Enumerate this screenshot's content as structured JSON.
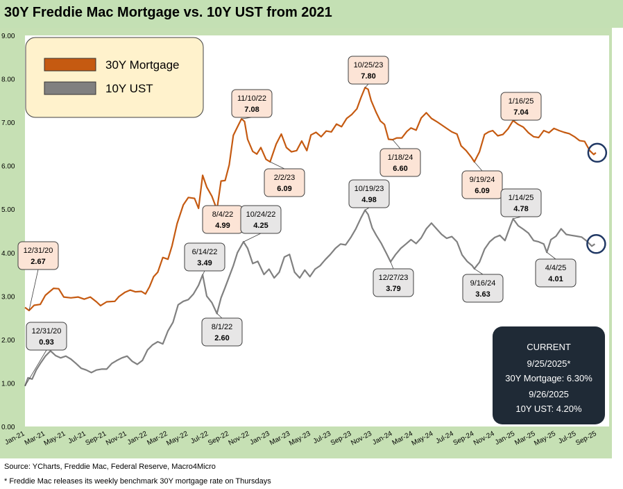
{
  "title": "30Y Freddie Mac Mortgage vs. 10Y UST from 2021",
  "footer": {
    "source": "Source: YCharts, Freddie Mac, Federal Reserve, Macro4Micro",
    "note": "* Freddie Mac releases its weekly benchmark 30Y mortgage rate on Thursdays"
  },
  "current_box": {
    "heading": "CURRENT",
    "date1": "9/25/2025*",
    "line1": "30Y Mortgage: 6.30%",
    "date2": "9/26/2025",
    "line2": "10Y UST: 4.20%"
  },
  "colors": {
    "mortgage": "#c55a11",
    "ust": "#808080",
    "plot_bg": "#ffffff",
    "panel_bg": "#c6e0b4",
    "legend_bg": "#fff2cc",
    "mortgage_label_bg": "#fce4d6",
    "ust_label_bg": "#e7e6e6",
    "current_bg": "#1f2a36",
    "marker_circle": "#203864"
  },
  "chart_data": {
    "type": "line",
    "title": "30Y Freddie Mac Mortgage vs. 10Y UST from 2021",
    "x_tick_labels": [
      "Jan-21",
      "Mar-21",
      "May-21",
      "Jul-21",
      "Sep-21",
      "Nov-21",
      "Jan-22",
      "Mar-22",
      "May-22",
      "Jul-22",
      "Sep-22",
      "Nov-22",
      "Jan-23",
      "Mar-23",
      "May-23",
      "Jul-23",
      "Sep-23",
      "Nov-23",
      "Jan-24",
      "Mar-24",
      "May-24",
      "Jul-24",
      "Sep-24",
      "Nov-24",
      "Jan-25",
      "Mar-25",
      "May-25",
      "Jul-25",
      "Sep-25"
    ],
    "x_tick_months": [
      0,
      2,
      4,
      6,
      8,
      10,
      12,
      14,
      16,
      18,
      20,
      22,
      24,
      26,
      28,
      30,
      32,
      34,
      36,
      38,
      40,
      42,
      44,
      46,
      48,
      50,
      52,
      54,
      56
    ],
    "x_unit": "months since Jan-21",
    "xlim": [
      0,
      57.2
    ],
    "ylim": [
      0,
      9
    ],
    "y_tick_labels": [
      "0.00",
      "1.00",
      "2.00",
      "3.00",
      "4.00",
      "5.00",
      "6.00",
      "7.00",
      "8.00",
      "9.00"
    ],
    "grid": false,
    "legend": {
      "position": "top-left",
      "entries": [
        "30Y Mortgage",
        "10Y UST"
      ]
    },
    "series": [
      {
        "name": "30Y Mortgage",
        "points": [
          [
            0,
            2.74
          ],
          [
            0.4,
            2.67
          ],
          [
            0.9,
            2.79
          ],
          [
            1.5,
            2.81
          ],
          [
            2.0,
            3.02
          ],
          [
            2.8,
            3.18
          ],
          [
            3.3,
            3.17
          ],
          [
            3.8,
            2.98
          ],
          [
            4.5,
            2.96
          ],
          [
            5.2,
            2.98
          ],
          [
            5.8,
            2.93
          ],
          [
            6.4,
            2.98
          ],
          [
            7.0,
            2.87
          ],
          [
            7.4,
            2.78
          ],
          [
            8.0,
            2.87
          ],
          [
            8.8,
            2.88
          ],
          [
            9.2,
            2.99
          ],
          [
            9.8,
            3.09
          ],
          [
            10.3,
            3.14
          ],
          [
            10.8,
            3.1
          ],
          [
            11.4,
            3.11
          ],
          [
            11.8,
            3.05
          ],
          [
            12.2,
            3.22
          ],
          [
            12.6,
            3.45
          ],
          [
            13.0,
            3.55
          ],
          [
            13.5,
            3.89
          ],
          [
            14.0,
            3.85
          ],
          [
            14.4,
            4.16
          ],
          [
            14.9,
            4.67
          ],
          [
            15.5,
            5.1
          ],
          [
            16.0,
            5.27
          ],
          [
            16.6,
            5.25
          ],
          [
            17.0,
            5.02
          ],
          [
            17.4,
            5.78
          ],
          [
            17.8,
            5.51
          ],
          [
            18.3,
            5.3
          ],
          [
            18.8,
            4.99
          ],
          [
            19.2,
            5.65
          ],
          [
            19.6,
            5.66
          ],
          [
            20.0,
            6.02
          ],
          [
            20.4,
            6.7
          ],
          [
            20.9,
            6.94
          ],
          [
            21.2,
            7.08
          ],
          [
            21.5,
            7.02
          ],
          [
            21.8,
            6.61
          ],
          [
            22.3,
            6.33
          ],
          [
            22.7,
            6.27
          ],
          [
            23.1,
            6.42
          ],
          [
            23.6,
            6.15
          ],
          [
            24.0,
            6.09
          ],
          [
            24.6,
            6.5
          ],
          [
            25.1,
            6.73
          ],
          [
            25.6,
            6.42
          ],
          [
            26.1,
            6.32
          ],
          [
            26.6,
            6.35
          ],
          [
            27.1,
            6.57
          ],
          [
            27.6,
            6.35
          ],
          [
            28.0,
            6.71
          ],
          [
            28.5,
            6.77
          ],
          [
            29.0,
            6.67
          ],
          [
            29.5,
            6.8
          ],
          [
            30.0,
            6.78
          ],
          [
            30.5,
            6.96
          ],
          [
            31.0,
            6.9
          ],
          [
            31.5,
            7.09
          ],
          [
            32.0,
            7.18
          ],
          [
            32.5,
            7.31
          ],
          [
            32.9,
            7.57
          ],
          [
            33.3,
            7.8
          ],
          [
            33.6,
            7.76
          ],
          [
            33.9,
            7.5
          ],
          [
            34.4,
            7.22
          ],
          [
            34.8,
            7.03
          ],
          [
            35.2,
            6.95
          ],
          [
            35.6,
            6.61
          ],
          [
            36.0,
            6.6
          ],
          [
            36.4,
            6.64
          ],
          [
            36.9,
            6.64
          ],
          [
            37.4,
            6.79
          ],
          [
            37.8,
            6.87
          ],
          [
            38.3,
            6.82
          ],
          [
            38.8,
            7.1
          ],
          [
            39.3,
            7.22
          ],
          [
            39.8,
            7.09
          ],
          [
            40.3,
            7.02
          ],
          [
            40.8,
            6.94
          ],
          [
            41.3,
            6.86
          ],
          [
            41.8,
            6.78
          ],
          [
            42.3,
            6.73
          ],
          [
            42.7,
            6.46
          ],
          [
            43.2,
            6.35
          ],
          [
            43.7,
            6.2
          ],
          [
            44.0,
            6.09
          ],
          [
            44.5,
            6.32
          ],
          [
            45.0,
            6.72
          ],
          [
            45.4,
            6.78
          ],
          [
            45.8,
            6.81
          ],
          [
            46.3,
            6.69
          ],
          [
            46.8,
            6.72
          ],
          [
            47.3,
            6.85
          ],
          [
            47.8,
            7.04
          ],
          [
            48.3,
            6.95
          ],
          [
            48.8,
            6.89
          ],
          [
            49.3,
            6.76
          ],
          [
            49.8,
            6.67
          ],
          [
            50.3,
            6.65
          ],
          [
            50.8,
            6.81
          ],
          [
            51.3,
            6.76
          ],
          [
            51.8,
            6.86
          ],
          [
            52.3,
            6.81
          ],
          [
            52.8,
            6.77
          ],
          [
            53.3,
            6.74
          ],
          [
            53.8,
            6.67
          ],
          [
            54.3,
            6.58
          ],
          [
            54.8,
            6.56
          ],
          [
            55.3,
            6.35
          ],
          [
            55.7,
            6.26
          ],
          [
            55.9,
            6.3
          ]
        ]
      },
      {
        "name": "10Y UST",
        "points": [
          [
            0,
            0.93
          ],
          [
            0.3,
            1.12
          ],
          [
            0.7,
            1.09
          ],
          [
            1.1,
            1.3
          ],
          [
            1.5,
            1.45
          ],
          [
            2.0,
            1.62
          ],
          [
            2.5,
            1.74
          ],
          [
            3.0,
            1.63
          ],
          [
            3.5,
            1.58
          ],
          [
            4.0,
            1.62
          ],
          [
            4.5,
            1.55
          ],
          [
            5.0,
            1.45
          ],
          [
            5.5,
            1.34
          ],
          [
            6.0,
            1.3
          ],
          [
            6.5,
            1.24
          ],
          [
            7.0,
            1.3
          ],
          [
            7.5,
            1.32
          ],
          [
            8.0,
            1.32
          ],
          [
            8.5,
            1.45
          ],
          [
            9.0,
            1.52
          ],
          [
            9.5,
            1.58
          ],
          [
            10.0,
            1.62
          ],
          [
            10.5,
            1.5
          ],
          [
            11.0,
            1.43
          ],
          [
            11.5,
            1.52
          ],
          [
            12.0,
            1.76
          ],
          [
            12.5,
            1.88
          ],
          [
            13.0,
            1.95
          ],
          [
            13.5,
            1.9
          ],
          [
            14.0,
            2.2
          ],
          [
            14.5,
            2.4
          ],
          [
            15.0,
            2.8
          ],
          [
            15.5,
            2.88
          ],
          [
            16.0,
            2.92
          ],
          [
            16.5,
            3.05
          ],
          [
            17.0,
            3.25
          ],
          [
            17.4,
            3.49
          ],
          [
            17.8,
            3.0
          ],
          [
            18.3,
            2.85
          ],
          [
            18.8,
            2.6
          ],
          [
            19.2,
            2.96
          ],
          [
            19.6,
            3.2
          ],
          [
            20.0,
            3.45
          ],
          [
            20.4,
            3.7
          ],
          [
            20.8,
            4.0
          ],
          [
            21.4,
            4.25
          ],
          [
            21.8,
            4.1
          ],
          [
            22.3,
            3.75
          ],
          [
            22.8,
            3.8
          ],
          [
            23.4,
            3.5
          ],
          [
            23.9,
            3.62
          ],
          [
            24.4,
            3.42
          ],
          [
            24.9,
            3.55
          ],
          [
            25.4,
            3.9
          ],
          [
            25.9,
            3.96
          ],
          [
            26.4,
            3.55
          ],
          [
            26.9,
            3.42
          ],
          [
            27.4,
            3.6
          ],
          [
            27.9,
            3.45
          ],
          [
            28.4,
            3.62
          ],
          [
            28.9,
            3.7
          ],
          [
            29.4,
            3.84
          ],
          [
            29.9,
            3.96
          ],
          [
            30.4,
            4.1
          ],
          [
            30.9,
            4.2
          ],
          [
            31.4,
            4.18
          ],
          [
            31.9,
            4.35
          ],
          [
            32.4,
            4.55
          ],
          [
            32.9,
            4.8
          ],
          [
            33.3,
            4.98
          ],
          [
            33.6,
            4.88
          ],
          [
            34.0,
            4.57
          ],
          [
            34.4,
            4.4
          ],
          [
            34.9,
            4.21
          ],
          [
            35.4,
            3.98
          ],
          [
            35.8,
            3.79
          ],
          [
            36.3,
            3.96
          ],
          [
            36.8,
            4.1
          ],
          [
            37.3,
            4.2
          ],
          [
            37.8,
            4.3
          ],
          [
            38.3,
            4.21
          ],
          [
            38.8,
            4.34
          ],
          [
            39.3,
            4.55
          ],
          [
            39.8,
            4.68
          ],
          [
            40.3,
            4.55
          ],
          [
            40.8,
            4.42
          ],
          [
            41.3,
            4.33
          ],
          [
            41.8,
            4.37
          ],
          [
            42.3,
            4.25
          ],
          [
            42.8,
            3.95
          ],
          [
            43.3,
            3.8
          ],
          [
            43.8,
            3.7
          ],
          [
            44.0,
            3.63
          ],
          [
            44.5,
            3.78
          ],
          [
            45.0,
            4.08
          ],
          [
            45.5,
            4.25
          ],
          [
            46.0,
            4.35
          ],
          [
            46.5,
            4.4
          ],
          [
            47.0,
            4.28
          ],
          [
            47.5,
            4.6
          ],
          [
            47.8,
            4.78
          ],
          [
            48.3,
            4.62
          ],
          [
            48.8,
            4.54
          ],
          [
            49.3,
            4.45
          ],
          [
            49.8,
            4.28
          ],
          [
            50.3,
            4.25
          ],
          [
            50.8,
            4.2
          ],
          [
            51.1,
            4.01
          ],
          [
            51.5,
            4.3
          ],
          [
            52.0,
            4.38
          ],
          [
            52.5,
            4.55
          ],
          [
            53.0,
            4.42
          ],
          [
            53.5,
            4.4
          ],
          [
            54.0,
            4.38
          ],
          [
            54.5,
            4.36
          ],
          [
            55.0,
            4.27
          ],
          [
            55.5,
            4.15
          ],
          [
            55.8,
            4.2
          ]
        ]
      }
    ],
    "annotations": [
      {
        "series": "30Y Mortgage",
        "date": "12/31/20",
        "value": "2.67",
        "x": 0.4,
        "y": 2.67
      },
      {
        "series": "30Y Mortgage",
        "date": "8/4/22",
        "value": "4.99",
        "x": 18.8,
        "y": 4.99
      },
      {
        "series": "30Y Mortgage",
        "date": "11/10/22",
        "value": "7.08",
        "x": 21.2,
        "y": 7.08
      },
      {
        "series": "30Y Mortgage",
        "date": "2/2/23",
        "value": "6.09",
        "x": 24.0,
        "y": 6.09
      },
      {
        "series": "30Y Mortgage",
        "date": "10/25/23",
        "value": "7.80",
        "x": 33.3,
        "y": 7.8
      },
      {
        "series": "30Y Mortgage",
        "date": "1/18/24",
        "value": "6.60",
        "x": 36.0,
        "y": 6.6
      },
      {
        "series": "30Y Mortgage",
        "date": "9/19/24",
        "value": "6.09",
        "x": 44.0,
        "y": 6.09
      },
      {
        "series": "30Y Mortgage",
        "date": "1/16/25",
        "value": "7.04",
        "x": 47.8,
        "y": 7.04
      },
      {
        "series": "10Y UST",
        "date": "12/31/20",
        "value": "0.93",
        "x": 0,
        "y": 0.93
      },
      {
        "series": "10Y UST",
        "date": "6/14/22",
        "value": "3.49",
        "x": 17.4,
        "y": 3.49
      },
      {
        "series": "10Y UST",
        "date": "8/1/22",
        "value": "2.60",
        "x": 18.8,
        "y": 2.6
      },
      {
        "series": "10Y UST",
        "date": "10/24/22",
        "value": "4.25",
        "x": 21.4,
        "y": 4.25
      },
      {
        "series": "10Y UST",
        "date": "10/19/23",
        "value": "4.98",
        "x": 33.3,
        "y": 4.98
      },
      {
        "series": "10Y UST",
        "date": "12/27/23",
        "value": "3.79",
        "x": 35.8,
        "y": 3.79
      },
      {
        "series": "10Y UST",
        "date": "9/16/24",
        "value": "3.63",
        "x": 44.0,
        "y": 3.63
      },
      {
        "series": "10Y UST",
        "date": "1/14/25",
        "value": "4.78",
        "x": 47.8,
        "y": 4.78
      },
      {
        "series": "10Y UST",
        "date": "4/4/25",
        "value": "4.01",
        "x": 51.1,
        "y": 4.01
      }
    ]
  }
}
